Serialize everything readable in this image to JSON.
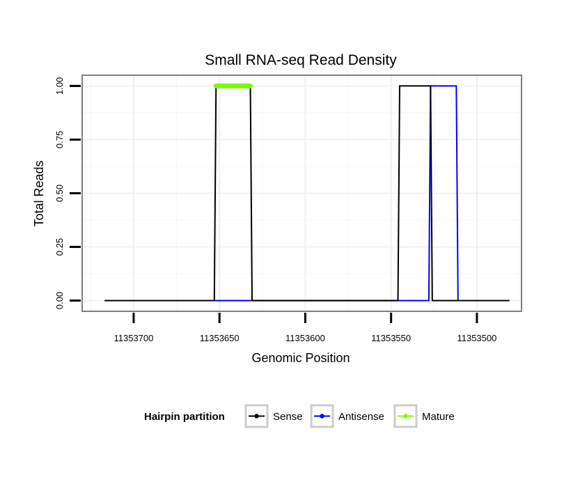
{
  "chart_data": {
    "type": "line",
    "title": "Small RNA-seq Read Density",
    "xlabel": "Genomic Position",
    "ylabel": "Total Reads",
    "x_reversed": true,
    "xlim": [
      11353730,
      11353474
    ],
    "ylim": [
      -0.05,
      1.05
    ],
    "x_ticks": [
      11353700,
      11353650,
      11353600,
      11353550,
      11353500
    ],
    "x_tick_labels": [
      "11353700",
      "11353650",
      "11353600",
      "11353550",
      "11353500"
    ],
    "y_ticks": [
      0,
      0.25,
      0.5,
      0.75,
      1
    ],
    "y_tick_labels": [
      "0.00",
      "0.25",
      "0.50",
      "0.75",
      "1.00"
    ],
    "grid": true,
    "legend": {
      "title": "Hairpin partition",
      "position": "bottom",
      "entries": [
        "Sense",
        "Antisense",
        "Mature"
      ]
    },
    "series": [
      {
        "name": "Sense",
        "color": "#000000",
        "x": [
          11353717,
          11353653,
          11353652,
          11353632,
          11353631,
          11353546,
          11353545,
          11353527,
          11353526,
          11353481
        ],
        "y": [
          0,
          0,
          1,
          1,
          0,
          0,
          1,
          1,
          0,
          0
        ]
      },
      {
        "name": "Antisense",
        "color": "#0000ff",
        "x": [
          11353653,
          11353631,
          11353546,
          11353528,
          11353527,
          11353512,
          11353511
        ],
        "y": [
          0,
          0,
          0,
          0,
          1,
          1,
          0
        ]
      },
      {
        "name": "Mature",
        "color": "#7cfc00",
        "x": [
          11353652,
          11353632
        ],
        "y": [
          1,
          1
        ]
      }
    ]
  }
}
